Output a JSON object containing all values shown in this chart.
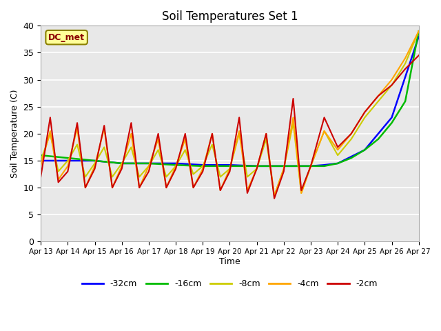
{
  "title": "Soil Temperatures Set 1",
  "xlabel": "Time",
  "ylabel": "Soil Temperature (C)",
  "annotation": "DC_met",
  "ylim": [
    0,
    40
  ],
  "xlim": [
    0,
    14
  ],
  "xtick_labels": [
    "Apr 13",
    "Apr 14",
    "Apr 15",
    "Apr 16",
    "Apr 17",
    "Apr 18",
    "Apr 19",
    "Apr 20",
    "Apr 21",
    "Apr 22",
    "Apr 23",
    "Apr 24",
    "Apr 25",
    "Apr 26",
    "Apr 27"
  ],
  "ytick_values": [
    0,
    5,
    10,
    15,
    20,
    25,
    30,
    35,
    40
  ],
  "background_color": "#e8e8e8",
  "series": {
    "-32cm": {
      "color": "#0000ff",
      "linewidth": 1.8,
      "x": [
        0,
        1,
        2,
        3,
        4,
        5,
        6,
        6.5,
        7,
        8,
        9,
        10,
        10.5,
        11,
        12,
        13,
        14
      ],
      "y": [
        15,
        15,
        15,
        14.5,
        14.5,
        14.5,
        14.2,
        14.2,
        14.2,
        14.0,
        14.0,
        14.0,
        14.2,
        14.5,
        17,
        23,
        38
      ]
    },
    "-16cm": {
      "color": "#00bb00",
      "linewidth": 1.8,
      "x": [
        0,
        1,
        2,
        3,
        4,
        5,
        6,
        6.5,
        7,
        8,
        9,
        10,
        10.5,
        11,
        11.5,
        12,
        12.5,
        13,
        13.5,
        14
      ],
      "y": [
        16,
        15.5,
        15.0,
        14.5,
        14.5,
        14.2,
        14.0,
        14.0,
        14.0,
        14.0,
        14.0,
        14.0,
        14.0,
        14.5,
        15.5,
        17,
        19,
        22,
        26,
        39
      ]
    },
    "-8cm": {
      "color": "#cccc00",
      "linewidth": 1.5,
      "x": [
        0,
        0.35,
        0.65,
        1,
        1.35,
        1.65,
        2,
        2.35,
        2.65,
        3,
        3.35,
        3.65,
        4,
        4.35,
        4.65,
        5,
        5.35,
        5.65,
        6,
        6.35,
        6.65,
        7,
        7.35,
        7.65,
        8,
        8.35,
        8.65,
        9,
        9.35,
        9.65,
        10,
        10.5,
        11,
        11.5,
        12,
        12.5,
        13,
        13.5,
        14
      ],
      "y": [
        15,
        20,
        13,
        15,
        18,
        12,
        14.5,
        17.5,
        12,
        14.5,
        17.5,
        12,
        14,
        17,
        12,
        14,
        17,
        12.5,
        14,
        18,
        12,
        13.5,
        20,
        12,
        13.5,
        19,
        8.5,
        13.5,
        22,
        9,
        14,
        20.5,
        16,
        19,
        23,
        26,
        29,
        33,
        39
      ]
    },
    "-4cm": {
      "color": "#ffa500",
      "linewidth": 1.5,
      "x": [
        0,
        0.35,
        0.65,
        1,
        1.35,
        1.65,
        2,
        2.35,
        2.65,
        3,
        3.35,
        3.65,
        4,
        4.35,
        4.65,
        5,
        5.35,
        5.65,
        6,
        6.35,
        6.65,
        7,
        7.35,
        7.65,
        8,
        8.35,
        8.65,
        9,
        9.35,
        9.65,
        10,
        10.5,
        11,
        11.5,
        12,
        12.5,
        13,
        13.5,
        14
      ],
      "y": [
        14,
        20.5,
        11.5,
        14,
        21,
        10,
        14,
        21,
        10,
        14,
        20,
        10,
        14,
        19,
        10,
        14,
        19,
        10,
        13.5,
        20,
        9.5,
        13.5,
        20.5,
        9.5,
        13.5,
        20,
        8.5,
        13.5,
        23,
        9,
        14,
        20.5,
        17,
        20,
        24,
        27,
        30,
        34,
        39
      ]
    },
    "-2cm": {
      "color": "#cc0000",
      "linewidth": 1.5,
      "x": [
        0,
        0.35,
        0.65,
        1,
        1.35,
        1.65,
        2,
        2.35,
        2.65,
        3,
        3.35,
        3.65,
        4,
        4.35,
        4.65,
        5,
        5.35,
        5.65,
        6,
        6.35,
        6.65,
        7,
        7.35,
        7.65,
        8,
        8.35,
        8.65,
        9,
        9.35,
        9.65,
        10,
        10.5,
        11,
        11.5,
        12,
        12.5,
        13,
        13.5,
        14
      ],
      "y": [
        12,
        23,
        11,
        13,
        22,
        10,
        13.5,
        21.5,
        10,
        13.5,
        22,
        10,
        13,
        20,
        10,
        13.5,
        20,
        10,
        13,
        20,
        9.5,
        13,
        23,
        9,
        13.5,
        20,
        8,
        13,
        26.5,
        9.5,
        14,
        23,
        17.5,
        20,
        24,
        27,
        29,
        32,
        34.5
      ]
    }
  },
  "legend_order": [
    "-32cm",
    "-16cm",
    "-8cm",
    "-4cm",
    "-2cm"
  ]
}
